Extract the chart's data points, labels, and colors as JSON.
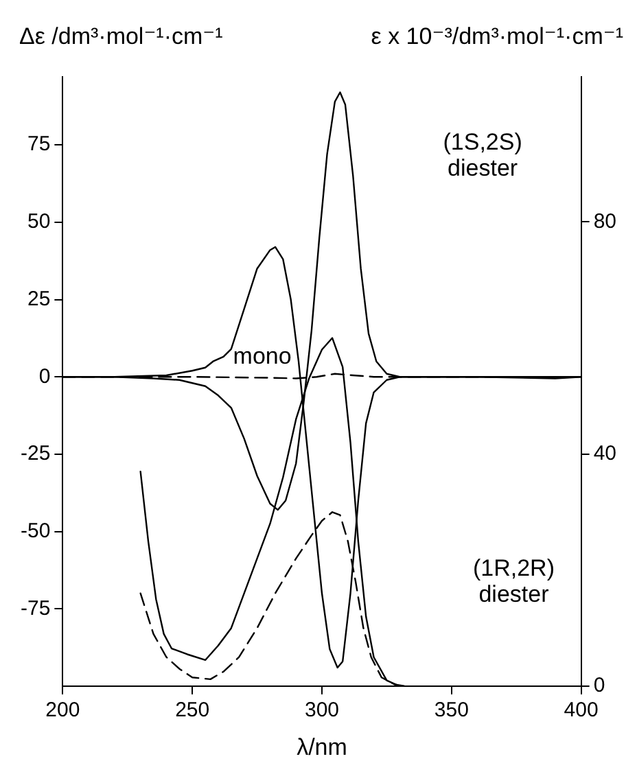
{
  "chart_data": {
    "type": "line",
    "xlabel": "λ/nm",
    "ylabel": "Δε /dm³·mol⁻¹·cm⁻¹",
    "y2label": "ε x 10⁻³/dm³·mol⁻¹·cm⁻¹",
    "xlim": [
      200,
      400
    ],
    "xticks": [
      200,
      250,
      300,
      350,
      400
    ],
    "ylim": [
      -100,
      97
    ],
    "yticks": [
      -75,
      -50,
      -25,
      0,
      25,
      50,
      75
    ],
    "y2lim": [
      0,
      105
    ],
    "y2ticks": [
      0,
      40,
      80
    ],
    "grid": false,
    "legend": false,
    "marker": "none",
    "series": [
      {
        "color": "#000000",
        "line_style": "solid",
        "x": [
          200,
          220,
          235,
          245,
          250,
          255,
          260,
          265,
          270,
          275,
          280,
          283,
          286,
          290,
          293,
          296,
          299,
          302,
          305,
          307,
          309,
          312,
          315,
          318,
          321,
          325,
          330,
          360,
          390,
          400
        ],
        "values": [
          0,
          0,
          -0.5,
          -1,
          -2,
          -3,
          -6,
          -10,
          -20,
          -32,
          -41,
          -43,
          -40,
          -28,
          -8,
          15,
          45,
          72,
          89,
          92,
          88,
          65,
          35,
          14,
          5,
          1,
          0,
          0,
          -0.5,
          0
        ]
      },
      {
        "color": "#000000",
        "line_style": "solid",
        "x": [
          200,
          220,
          240,
          250,
          255,
          258,
          262,
          265,
          270,
          275,
          280,
          282,
          285,
          288,
          291,
          294,
          297,
          300,
          303,
          306,
          308,
          311,
          314,
          317,
          320,
          325,
          330,
          360,
          400
        ],
        "values": [
          0,
          0,
          0.5,
          2,
          3,
          5,
          6.5,
          9,
          22,
          35,
          41,
          42,
          38,
          25,
          5,
          -20,
          -45,
          -70,
          -88,
          -94,
          -92,
          -70,
          -40,
          -15,
          -5,
          -1,
          0,
          0,
          0
        ]
      },
      {
        "color": "#000000",
        "line_style": "dashed",
        "x": [
          200,
          250,
          280,
          290,
          298,
          305,
          312,
          320,
          340,
          400
        ],
        "values": [
          0,
          0,
          -0.3,
          -0.5,
          0,
          1,
          0.5,
          0,
          0,
          0
        ]
      },
      {
        "color": "#000000",
        "line_style": "solid",
        "axis": "y2",
        "x": [
          230,
          233,
          236,
          239,
          242,
          248,
          255,
          260,
          265,
          270,
          275,
          280,
          285,
          290,
          295,
          300,
          304,
          308,
          311,
          314,
          317,
          320,
          325,
          330
        ],
        "values": [
          37,
          25,
          15,
          9,
          6.5,
          5.5,
          4.5,
          7,
          10,
          16,
          22,
          28,
          36,
          46,
          53,
          58,
          60,
          55,
          42,
          25,
          12,
          5,
          1,
          0
        ]
      },
      {
        "color": "#000000",
        "line_style": "dashed",
        "axis": "y2",
        "x": [
          230,
          235,
          240,
          245,
          250,
          257,
          262,
          268,
          275,
          282,
          290,
          296,
          300,
          304,
          307,
          310,
          313,
          316,
          319,
          323,
          328,
          332
        ],
        "values": [
          16,
          9,
          5,
          3,
          1.5,
          1.2,
          2.5,
          5,
          10,
          16,
          22,
          26,
          28.5,
          30,
          29.5,
          25,
          18,
          10,
          5,
          1.5,
          0.3,
          0
        ]
      }
    ],
    "annotations": [
      "mono",
      "(1S,2S) diester",
      "(1R,2R) diester"
    ]
  }
}
